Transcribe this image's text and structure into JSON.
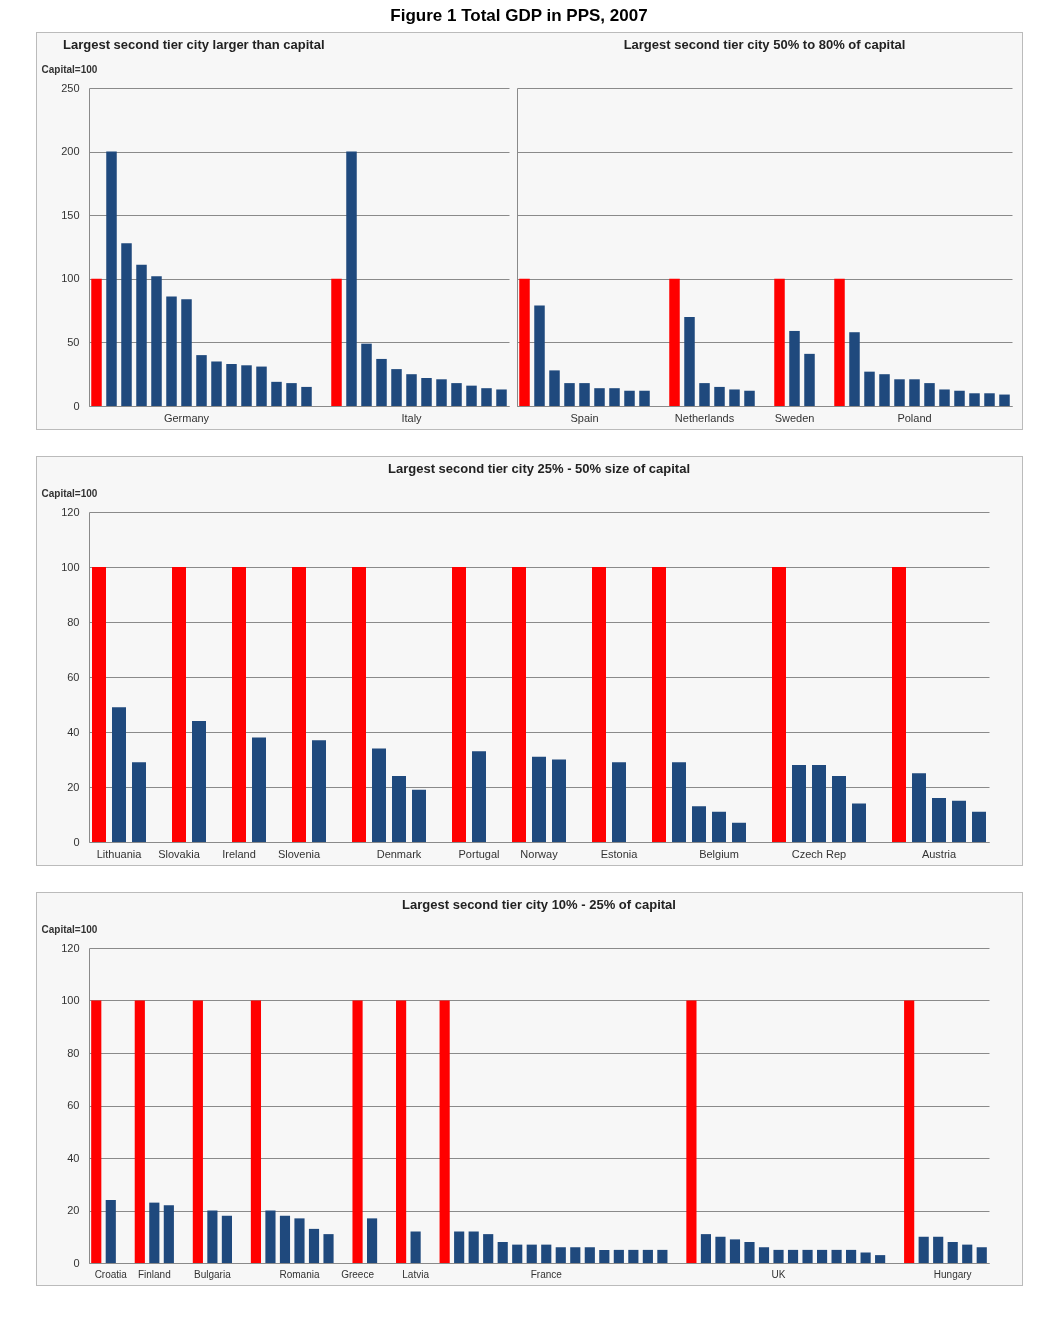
{
  "chart_data": [
    {
      "type": "bar",
      "title": "Figure 1 Total GDP in PPS, 2007",
      "subtitle": "Largest second tier city larger than capital",
      "ylabel": "Capital=100",
      "categories": [
        null,
        null,
        null,
        null,
        null,
        null,
        "Germany",
        null,
        null,
        null,
        null,
        null,
        null,
        null,
        null,
        null,
        null,
        null,
        null,
        null,
        null,
        "Italy",
        null,
        null,
        null,
        null,
        null,
        null
      ],
      "values": [
        100,
        200,
        128,
        111,
        102,
        86,
        84,
        40,
        35,
        33,
        32,
        31,
        19,
        18,
        15,
        null,
        100,
        200,
        49,
        37,
        29,
        25,
        22,
        21,
        18,
        16,
        14,
        13
      ],
      "colors": [
        "#ff0000",
        "#1f497d",
        "#1f497d",
        "#1f497d",
        "#1f497d",
        "#1f497d",
        "#1f497d",
        "#1f497d",
        "#1f497d",
        "#1f497d",
        "#1f497d",
        "#1f497d",
        "#1f497d",
        "#1f497d",
        "#1f497d",
        null,
        "#ff0000",
        "#1f497d",
        "#1f497d",
        "#1f497d",
        "#1f497d",
        "#1f497d",
        "#1f497d",
        "#1f497d",
        "#1f497d",
        "#1f497d",
        "#1f497d",
        "#1f497d"
      ],
      "ylim": [
        0,
        250
      ],
      "yticks": [
        0,
        50,
        100,
        150,
        200,
        250
      ],
      "grid": "y"
    },
    {
      "type": "bar",
      "title": "Largest second tier city 50% to 80% of capital",
      "categories": [
        null,
        null,
        null,
        null,
        "Spain",
        null,
        null,
        null,
        null,
        null,
        null,
        null,
        "Netherlands",
        null,
        null,
        null,
        null,
        null,
        "Sweden",
        null,
        null,
        null,
        null,
        null,
        null,
        null,
        "Poland",
        null,
        null,
        null,
        null,
        null,
        null
      ],
      "values": [
        100,
        79,
        28,
        18,
        18,
        14,
        14,
        12,
        12,
        null,
        100,
        70,
        18,
        15,
        13,
        12,
        null,
        100,
        59,
        41,
        null,
        100,
        58,
        27,
        25,
        21,
        21,
        18,
        13,
        12,
        10,
        10,
        9
      ],
      "colors": [
        "#ff0000",
        "#1f497d",
        "#1f497d",
        "#1f497d",
        "#1f497d",
        "#1f497d",
        "#1f497d",
        "#1f497d",
        "#1f497d",
        null,
        "#ff0000",
        "#1f497d",
        "#1f497d",
        "#1f497d",
        "#1f497d",
        "#1f497d",
        null,
        "#ff0000",
        "#1f497d",
        "#1f497d",
        null,
        "#ff0000",
        "#1f497d",
        "#1f497d",
        "#1f497d",
        "#1f497d",
        "#1f497d",
        "#1f497d",
        "#1f497d",
        "#1f497d",
        "#1f497d",
        "#1f497d",
        "#1f497d"
      ],
      "ylim": [
        0,
        250
      ],
      "yticks": [
        0,
        50,
        100,
        150,
        200,
        250
      ],
      "grid": "y",
      "tick_labels": "x"
    },
    {
      "type": "bar",
      "title": "Largest second tier city 25% - 50% size of capital",
      "ylabel": "Capital=100",
      "categories": [
        null,
        "Lithuania",
        null,
        null,
        "Slovakia",
        null,
        null,
        "Ireland",
        null,
        null,
        "Slovenia",
        null,
        null,
        null,
        null,
        "Denmark",
        null,
        null,
        null,
        "Portugal",
        null,
        null,
        "Norway",
        null,
        null,
        null,
        "Estonia",
        null,
        null,
        null,
        null,
        "Belgium",
        null,
        null,
        null,
        null,
        "Czech Rep",
        null,
        null,
        null,
        null,
        null,
        "Austria",
        null,
        null
      ],
      "values": [
        100,
        49,
        29,
        null,
        100,
        44,
        null,
        100,
        38,
        null,
        100,
        37,
        null,
        100,
        34,
        24,
        19,
        null,
        100,
        33,
        null,
        100,
        31,
        30,
        null,
        100,
        29,
        null,
        100,
        29,
        13,
        11,
        7,
        null,
        100,
        28,
        28,
        24,
        14,
        null,
        100,
        25,
        16,
        15,
        11
      ],
      "colors": [
        "#ff0000",
        "#1f497d",
        "#1f497d",
        null,
        "#ff0000",
        "#1f497d",
        null,
        "#ff0000",
        "#1f497d",
        null,
        "#ff0000",
        "#1f497d",
        null,
        "#ff0000",
        "#1f497d",
        "#1f497d",
        "#1f497d",
        null,
        "#ff0000",
        "#1f497d",
        null,
        "#ff0000",
        "#1f497d",
        "#1f497d",
        null,
        "#ff0000",
        "#1f497d",
        null,
        "#ff0000",
        "#1f497d",
        "#1f497d",
        "#1f497d",
        "#1f497d",
        null,
        "#ff0000",
        "#1f497d",
        "#1f497d",
        "#1f497d",
        "#1f497d",
        null,
        "#ff0000",
        "#1f497d",
        "#1f497d",
        "#1f497d",
        "#1f497d"
      ],
      "ylim": [
        0,
        120
      ],
      "yticks": [
        0,
        20,
        40,
        60,
        80,
        100,
        120
      ],
      "grid": "y"
    },
    {
      "type": "bar",
      "title": "Largest second tier city 10% - 25% of capital",
      "ylabel": "Capital=100",
      "categories": [
        null,
        "Croatia",
        null,
        null,
        "Finland",
        null,
        null,
        null,
        "Bulgaria",
        null,
        null,
        null,
        null,
        null,
        "Romania",
        null,
        null,
        null,
        "Greece",
        null,
        null,
        null,
        "Latvia",
        null,
        null,
        null,
        null,
        null,
        null,
        null,
        null,
        "France",
        null,
        null,
        null,
        null,
        null,
        null,
        null,
        null,
        null,
        null,
        null,
        null,
        null,
        null,
        null,
        "UK",
        null,
        null,
        null,
        null,
        null,
        null,
        null,
        null,
        null,
        null,
        null,
        "Hungary",
        null,
        null
      ],
      "values": [
        100,
        24,
        null,
        100,
        23,
        22,
        null,
        100,
        20,
        18,
        null,
        100,
        20,
        18,
        17,
        13,
        11,
        null,
        100,
        17,
        null,
        100,
        12,
        null,
        100,
        12,
        12,
        11,
        8,
        7,
        7,
        7,
        6,
        6,
        6,
        5,
        5,
        5,
        5,
        5,
        null,
        100,
        11,
        10,
        9,
        8,
        6,
        5,
        5,
        5,
        5,
        5,
        5,
        4,
        3,
        null,
        100,
        10,
        10,
        8,
        7,
        6
      ],
      "colors": [
        "#ff0000",
        "#1f497d",
        null,
        "#ff0000",
        "#1f497d",
        "#1f497d",
        null,
        "#ff0000",
        "#1f497d",
        "#1f497d",
        null,
        "#ff0000",
        "#1f497d",
        "#1f497d",
        "#1f497d",
        "#1f497d",
        "#1f497d",
        null,
        "#ff0000",
        "#1f497d",
        null,
        "#ff0000",
        "#1f497d",
        null,
        "#ff0000",
        "#1f497d",
        "#1f497d",
        "#1f497d",
        "#1f497d",
        "#1f497d",
        "#1f497d",
        "#1f497d",
        "#1f497d",
        "#1f497d",
        "#1f497d",
        "#1f497d",
        "#1f497d",
        "#1f497d",
        "#1f497d",
        "#1f497d",
        null,
        "#ff0000",
        "#1f497d",
        "#1f497d",
        "#1f497d",
        "#1f497d",
        "#1f497d",
        "#1f497d",
        "#1f497d",
        "#1f497d",
        "#1f497d",
        "#1f497d",
        "#1f497d",
        "#1f497d",
        "#1f497d",
        null,
        "#ff0000",
        "#1f497d",
        "#1f497d",
        "#1f497d",
        "#1f497d",
        "#1f497d"
      ],
      "ylim": [
        0,
        120
      ],
      "yticks": [
        0,
        20,
        40,
        60,
        80,
        100,
        120
      ],
      "grid": "y"
    }
  ]
}
